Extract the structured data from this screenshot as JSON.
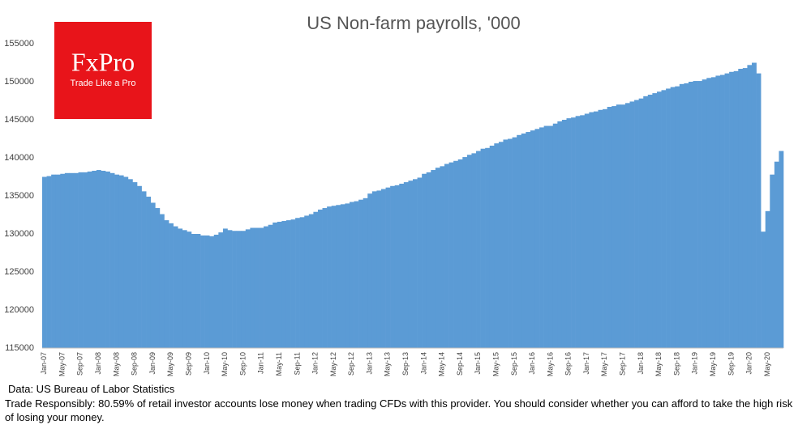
{
  "chart_data": {
    "type": "bar",
    "title": "US Non-farm payrolls, '000",
    "categories": [
      "Jan-07",
      null,
      null,
      null,
      "May-07",
      null,
      null,
      null,
      "Sep-07",
      null,
      null,
      null,
      "Jan-08",
      null,
      null,
      null,
      "May-08",
      null,
      null,
      null,
      "Sep-08",
      null,
      null,
      null,
      "Jan-09",
      null,
      null,
      null,
      "May-09",
      null,
      null,
      null,
      "Sep-09",
      null,
      null,
      null,
      "Jan-10",
      null,
      null,
      null,
      "May-10",
      null,
      null,
      null,
      "Sep-10",
      null,
      null,
      null,
      "Jan-11",
      null,
      null,
      null,
      "May-11",
      null,
      null,
      null,
      "Sep-11",
      null,
      null,
      null,
      "Jan-12",
      null,
      null,
      null,
      "May-12",
      null,
      null,
      null,
      "Sep-12",
      null,
      null,
      null,
      "Jan-13",
      null,
      null,
      null,
      "May-13",
      null,
      null,
      null,
      "Sep-13",
      null,
      null,
      null,
      "Jan-14",
      null,
      null,
      null,
      "May-14",
      null,
      null,
      null,
      "Sep-14",
      null,
      null,
      null,
      "Jan-15",
      null,
      null,
      null,
      "May-15",
      null,
      null,
      null,
      "Sep-15",
      null,
      null,
      null,
      "Jan-16",
      null,
      null,
      null,
      "May-16",
      null,
      null,
      null,
      "Sep-16",
      null,
      null,
      null,
      "Jan-17",
      null,
      null,
      null,
      "May-17",
      null,
      null,
      null,
      "Sep-17",
      null,
      null,
      null,
      "Jan-18",
      null,
      null,
      null,
      "May-18",
      null,
      null,
      null,
      "Sep-18",
      null,
      null,
      null,
      "Jan-19",
      null,
      null,
      null,
      "May-19",
      null,
      null,
      null,
      "Sep-19",
      null,
      null,
      null,
      "Jan-20",
      null,
      null,
      null,
      "May-20",
      null,
      null,
      null
    ],
    "values": [
      137500,
      137600,
      137800,
      137800,
      137900,
      138000,
      138000,
      138000,
      138100,
      138100,
      138200,
      138300,
      138400,
      138300,
      138200,
      138000,
      137800,
      137700,
      137500,
      137200,
      136800,
      136300,
      135600,
      134900,
      134100,
      133400,
      132600,
      131800,
      131400,
      131000,
      130700,
      130500,
      130300,
      130000,
      130000,
      129800,
      129800,
      129700,
      129900,
      130200,
      130700,
      130500,
      130400,
      130400,
      130400,
      130600,
      130800,
      130800,
      130800,
      131000,
      131200,
      131500,
      131600,
      131700,
      131800,
      131900,
      132100,
      132200,
      132400,
      132600,
      132900,
      133200,
      133400,
      133600,
      133700,
      133800,
      133900,
      134000,
      134200,
      134300,
      134500,
      134700,
      135300,
      135600,
      135700,
      135900,
      136100,
      136300,
      136400,
      136600,
      136800,
      137000,
      137200,
      137400,
      137900,
      138100,
      138400,
      138700,
      138900,
      139200,
      139400,
      139600,
      139800,
      140100,
      140400,
      140600,
      140900,
      141200,
      141300,
      141600,
      141900,
      142100,
      142400,
      142500,
      142700,
      143000,
      143200,
      143400,
      143600,
      143800,
      144000,
      144200,
      144200,
      144500,
      144800,
      145000,
      145200,
      145300,
      145500,
      145600,
      145800,
      146000,
      146100,
      146300,
      146400,
      146700,
      146800,
      147000,
      147000,
      147200,
      147400,
      147600,
      147800,
      148100,
      148300,
      148500,
      148700,
      148900,
      149100,
      149300,
      149400,
      149700,
      149800,
      150000,
      150100,
      150100,
      150300,
      150500,
      150600,
      150800,
      150900,
      151100,
      151300,
      151400,
      151700,
      151800,
      152200,
      152500,
      151100,
      130300,
      133000,
      137800,
      139500,
      140900
    ],
    "color": "#5b9bd5",
    "ylim": [
      115000,
      155000
    ],
    "yticks": [
      115000,
      120000,
      125000,
      130000,
      135000,
      140000,
      145000,
      150000,
      155000
    ],
    "grid": false
  },
  "logo": {
    "brand": "FxPro",
    "tagline": "Trade Like a Pro"
  },
  "footer": {
    "source": "Data: US Bureau of Labor Statistics",
    "disclaimer": "Trade Responsibly: 80.59% of retail investor accounts lose money when trading CFDs with this provider. You should consider whether you can afford to take the high risk of losing your money."
  }
}
